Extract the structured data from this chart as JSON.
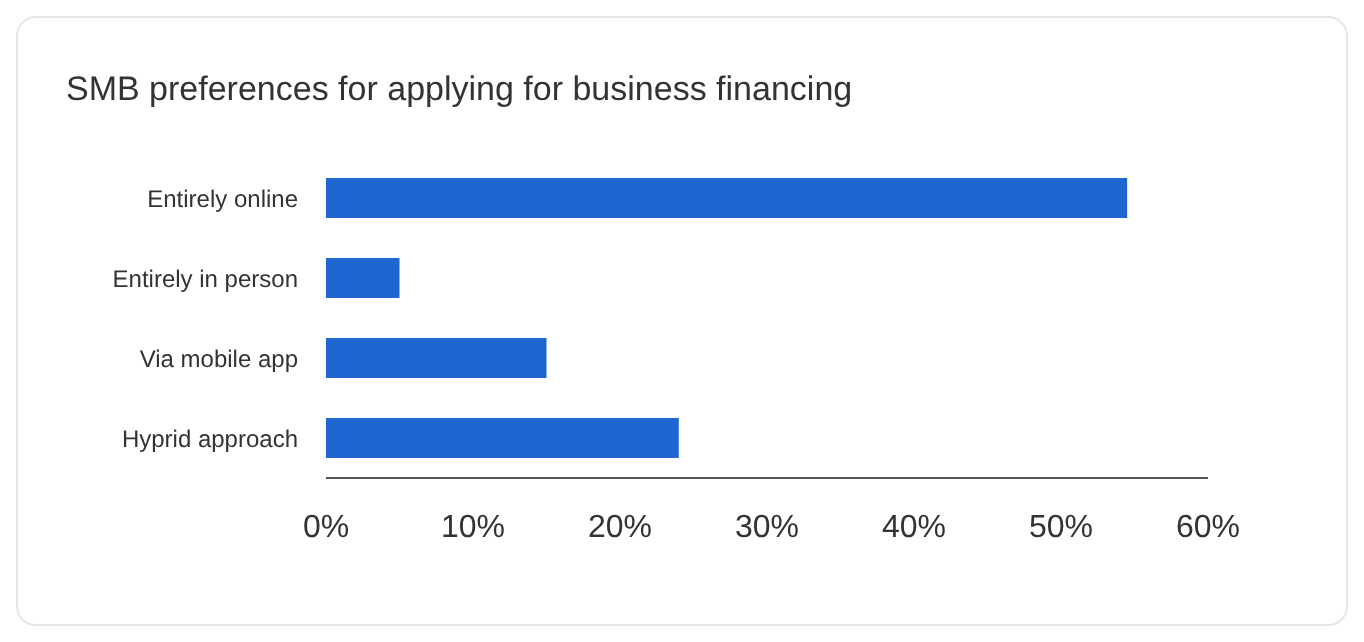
{
  "chart_data": {
    "type": "bar",
    "title": "SMB preferences for applying for business financing",
    "orientation": "horizontal",
    "categories": [
      "Entirely online",
      "Entirely in person",
      "Via mobile app",
      "Hyprid approach"
    ],
    "values": [
      54.5,
      5,
      15,
      24
    ],
    "color": "#1f66d1",
    "xlim": [
      0,
      60
    ],
    "xticks": [
      {
        "value": 0,
        "label": "0%"
      },
      {
        "value": 10,
        "label": "10%"
      },
      {
        "value": 20,
        "label": "20%"
      },
      {
        "value": 30,
        "label": "30%"
      },
      {
        "value": 40,
        "label": "40%"
      },
      {
        "value": 50,
        "label": "50%"
      },
      {
        "value": 60,
        "label": "60%"
      }
    ],
    "grid": false
  }
}
